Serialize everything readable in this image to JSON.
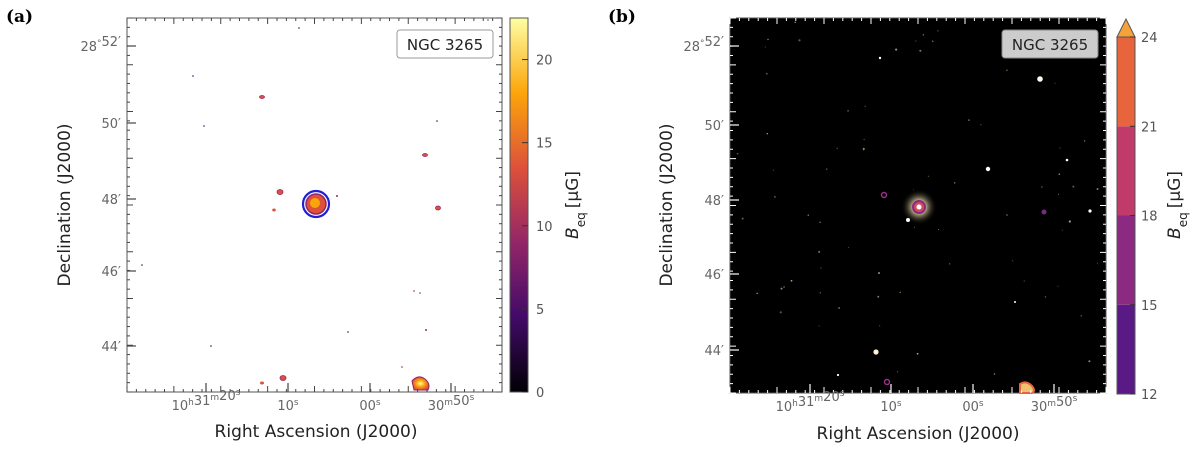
{
  "chart_data": [
    {
      "type": "heatmap",
      "panel": "(a)",
      "badge": "NGC 3265",
      "xlabel": "Right Ascension (J2000)",
      "ylabel": "Declination (J2000)",
      "x_ticks": [
        {
          "h": "10",
          "m": "31",
          "s": "20",
          "show_h": true,
          "show_m": true
        },
        {
          "s": "10"
        },
        {
          "s": "00"
        },
        {
          "m": "30",
          "s": "50",
          "show_m": true
        }
      ],
      "y_ticks": [
        {
          "deg": "28",
          "min": "52",
          "show_deg": true
        },
        {
          "min": "50"
        },
        {
          "min": "48"
        },
        {
          "min": "46"
        },
        {
          "min": "44"
        }
      ],
      "colorbar": {
        "label_main": "B",
        "label_sub": "eq",
        "label_unit": "[μG]",
        "ticks": [
          0,
          5,
          10,
          15,
          20
        ],
        "range": [
          0,
          22.5
        ],
        "colormap": "inferno",
        "colors": [
          "#000004",
          "#420a68",
          "#932667",
          "#dd513a",
          "#fca50a",
          "#fcffa4"
        ]
      },
      "background": "#ffffff",
      "marker_color": "#1f1fd6"
    },
    {
      "type": "heatmap",
      "panel": "(b)",
      "badge": "NGC 3265",
      "xlabel": "Right Ascension (J2000)",
      "ylabel": "Declination (J2000)",
      "x_ticks": [
        {
          "h": "10",
          "m": "31",
          "s": "20",
          "show_h": true,
          "show_m": true
        },
        {
          "s": "10"
        },
        {
          "s": "00"
        },
        {
          "m": "30",
          "s": "50",
          "show_m": true
        }
      ],
      "y_ticks": [
        {
          "deg": "28",
          "min": "52",
          "show_deg": true
        },
        {
          "min": "50"
        },
        {
          "min": "48"
        },
        {
          "min": "46"
        },
        {
          "min": "44"
        }
      ],
      "colorbar": {
        "label_main": "B",
        "label_sub": "eq",
        "label_unit": "[μG]",
        "ticks": [
          12,
          15,
          18,
          21,
          24
        ],
        "range": [
          12,
          24
        ],
        "extend": "max",
        "bins": [
          {
            "from": 12,
            "to": 15,
            "color": "#5a1a86"
          },
          {
            "from": 15,
            "to": 18,
            "color": "#8c2a82"
          },
          {
            "from": 18,
            "to": 21,
            "color": "#c03a6a"
          },
          {
            "from": 21,
            "to": 24,
            "color": "#e8643c"
          }
        ],
        "extend_color": "#f5a23a"
      },
      "background": "#000000"
    }
  ]
}
